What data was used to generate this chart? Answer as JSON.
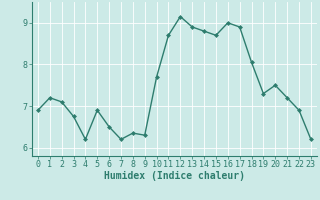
{
  "x": [
    0,
    1,
    2,
    3,
    4,
    5,
    6,
    7,
    8,
    9,
    10,
    11,
    12,
    13,
    14,
    15,
    16,
    17,
    18,
    19,
    20,
    21,
    22,
    23
  ],
  "y": [
    6.9,
    7.2,
    7.1,
    6.75,
    6.2,
    6.9,
    6.5,
    6.2,
    6.35,
    6.3,
    7.7,
    8.7,
    9.15,
    8.9,
    8.8,
    8.7,
    9.0,
    8.9,
    8.05,
    7.3,
    7.5,
    7.2,
    6.9,
    6.2
  ],
  "line_color": "#2e7d6e",
  "marker": "D",
  "marker_size": 2,
  "linewidth": 1.0,
  "xlabel": "Humidex (Indice chaleur)",
  "xlim": [
    -0.5,
    23.5
  ],
  "ylim": [
    5.8,
    9.5
  ],
  "yticks": [
    6,
    7,
    8,
    9
  ],
  "xticks": [
    0,
    1,
    2,
    3,
    4,
    5,
    6,
    7,
    8,
    9,
    10,
    11,
    12,
    13,
    14,
    15,
    16,
    17,
    18,
    19,
    20,
    21,
    22,
    23
  ],
  "bg_color": "#cceae7",
  "grid_color": "#ffffff",
  "tick_labelsize": 6,
  "xlabel_fontsize": 7,
  "xlabel_fontweight": "bold",
  "spine_color": "#2e7d6e"
}
